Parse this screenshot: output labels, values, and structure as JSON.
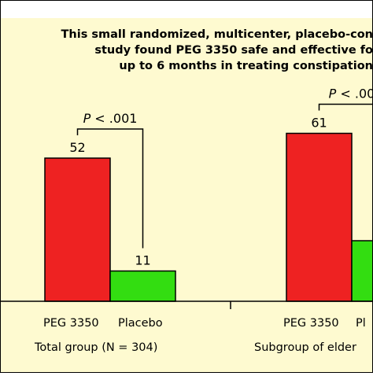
{
  "chart_data": {
    "type": "bar",
    "title_lines": [
      "This small randomized, multicenter, placebo-con",
      "study found PEG 3350 safe and effective fo",
      "up to 6 months in treating constipation"
    ],
    "groups": [
      {
        "label": "Total group (N = 304)",
        "categories": [
          "PEG 3350",
          "Placebo"
        ],
        "values": [
          52,
          11
        ],
        "p_label": "P < .001"
      },
      {
        "label": "Subgroup of elder",
        "categories": [
          "PEG 3350",
          "Pl"
        ],
        "values": [
          61,
          22
        ],
        "p_label": "P < .00"
      }
    ],
    "ylim": [
      0,
      80
    ],
    "colors": {
      "drug": "#ee2222",
      "placebo": "#33dd11",
      "background": "#fefad0",
      "border": "#000000"
    }
  }
}
